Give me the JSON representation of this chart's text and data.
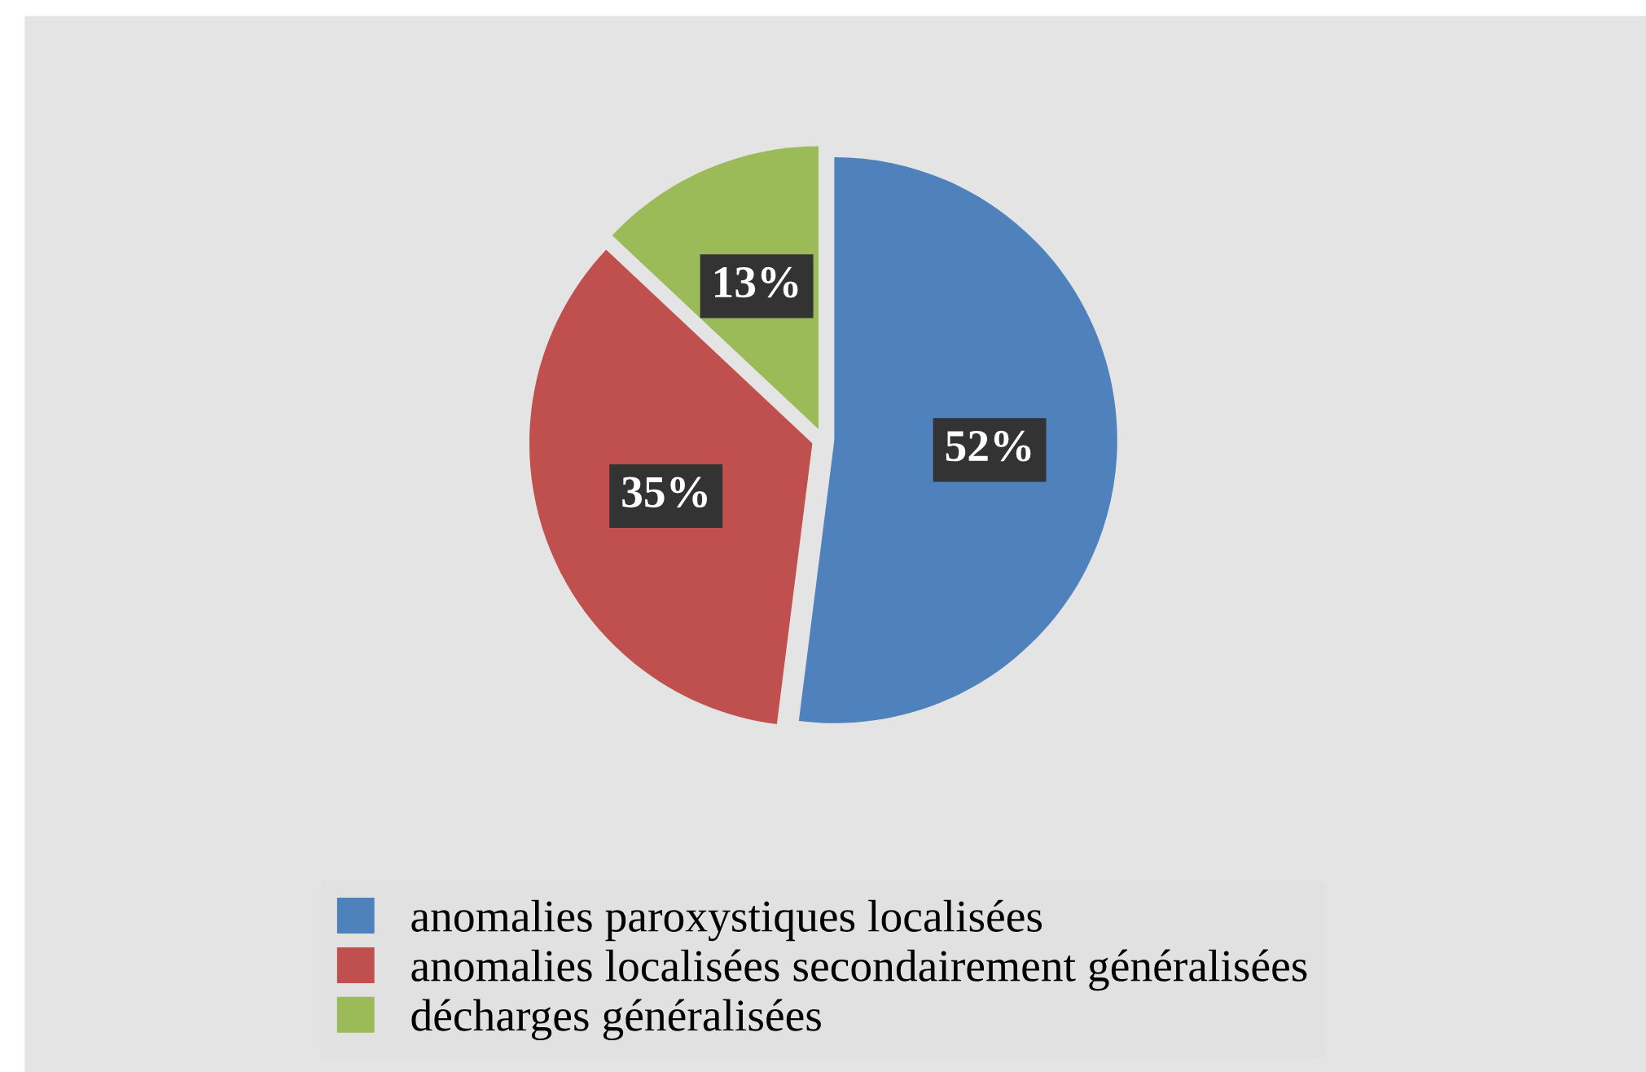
{
  "chart_data": {
    "type": "pie",
    "categories": [
      "anomalies paroxystiques localisées",
      "anomalies localisées secondairement généralisées",
      "décharges généralisées"
    ],
    "values": [
      52,
      35,
      13
    ],
    "value_labels": [
      "52%",
      "35%",
      "13%"
    ],
    "colors": [
      "#4f81bd",
      "#c0504d",
      "#9bbb59"
    ],
    "legend": "bottom"
  }
}
